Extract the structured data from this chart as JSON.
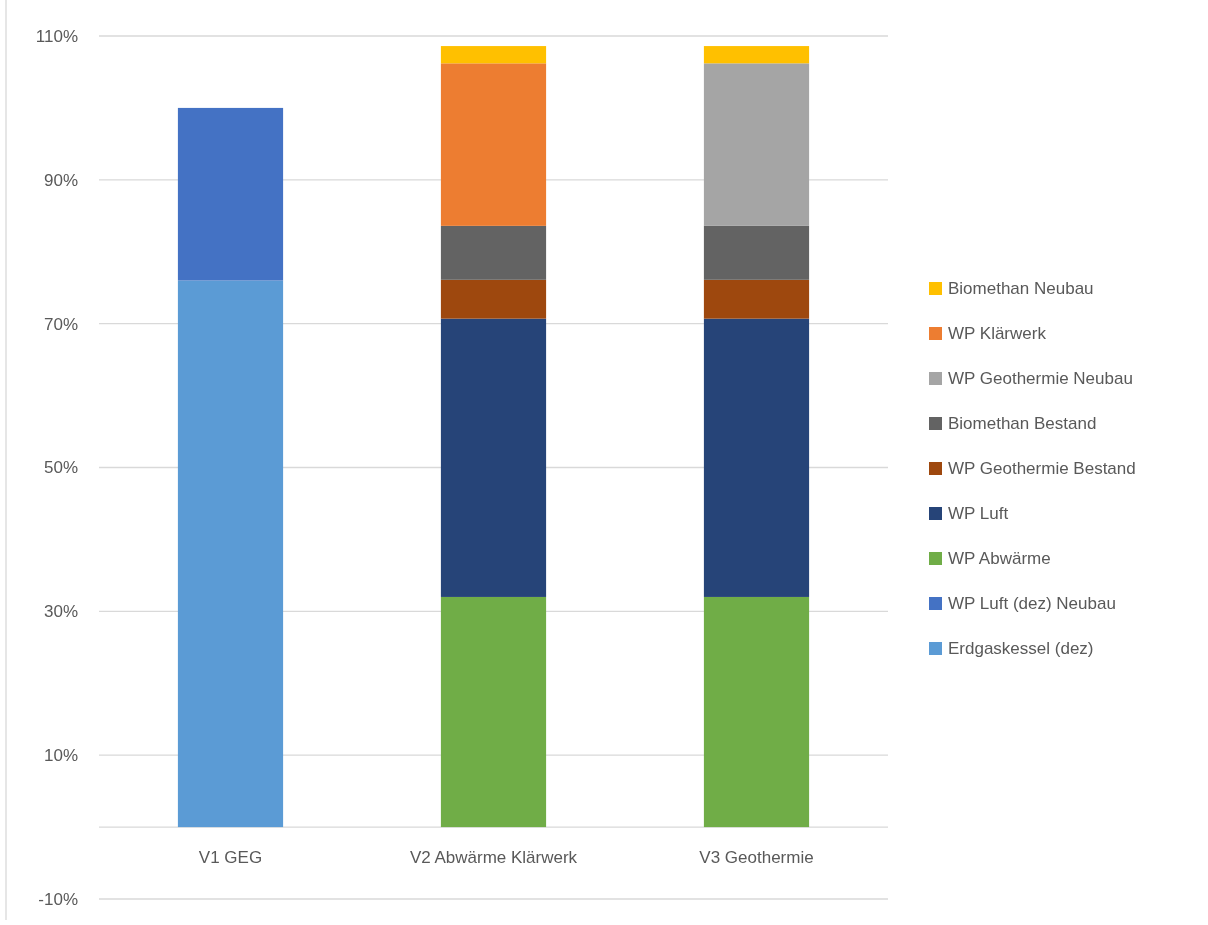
{
  "chart_data": {
    "type": "bar",
    "stacked": true,
    "categories": [
      "V1 GEG",
      "V2 Abwärme Klärwerk",
      "V3 Geothermie"
    ],
    "series": [
      {
        "name": "Erdgaskessel (dez)",
        "color": "#5b9bd5",
        "values": [
          76,
          null,
          null
        ]
      },
      {
        "name": "WP Luft (dez) Neubau",
        "color": "#4472c4",
        "values": [
          24,
          null,
          null
        ]
      },
      {
        "name": "WP Abwärme",
        "color": "#70ad47",
        "values": [
          null,
          32,
          32
        ]
      },
      {
        "name": "WP Luft",
        "color": "#264478",
        "values": [
          null,
          38.7,
          38.7
        ]
      },
      {
        "name": "WP Geothermie Bestand",
        "color": "#9e480e",
        "values": [
          null,
          5.4,
          5.4
        ]
      },
      {
        "name": "Biomethan Bestand",
        "color": "#636363",
        "values": [
          null,
          7.5,
          7.5
        ]
      },
      {
        "name": "WP Geothermie Neubau",
        "color": "#a5a5a5",
        "values": [
          null,
          null,
          22.6
        ]
      },
      {
        "name": "WP Klärwerk",
        "color": "#ed7d31",
        "values": [
          null,
          22.6,
          null
        ]
      },
      {
        "name": "Biomethan Neubau",
        "color": "#ffc000",
        "values": [
          null,
          2.4,
          2.4
        ]
      }
    ],
    "ylim": [
      -10,
      110
    ],
    "yticks": [
      {
        "value": -10,
        "label": "-10%"
      },
      {
        "value": 10,
        "label": "10%"
      },
      {
        "value": 30,
        "label": "30%"
      },
      {
        "value": 50,
        "label": "50%"
      },
      {
        "value": 70,
        "label": "70%"
      },
      {
        "value": 90,
        "label": "90%"
      },
      {
        "value": 110,
        "label": "110%"
      }
    ],
    "grid": "y",
    "legend": "right"
  }
}
